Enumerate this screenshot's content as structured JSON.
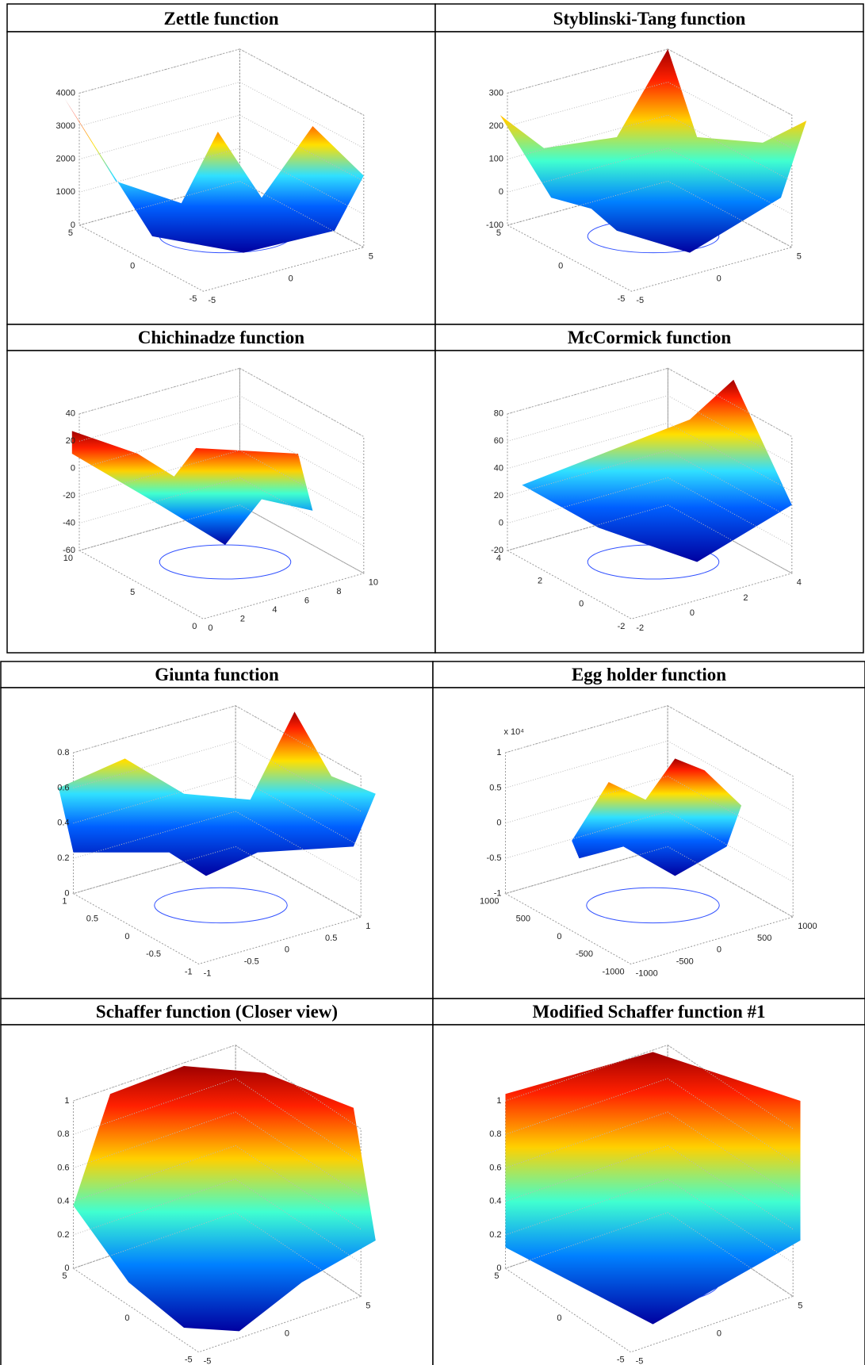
{
  "panels": [
    {
      "title": "Zettle function",
      "zticks": [
        0,
        1000,
        2000,
        3000,
        4000
      ],
      "yticks": [
        5,
        0,
        -5
      ],
      "xticks": [
        -5,
        0,
        5
      ]
    },
    {
      "title": "Styblinski-Tang function",
      "zticks": [
        -100,
        0,
        100,
        200,
        300
      ],
      "yticks": [
        5,
        0,
        -5
      ],
      "xticks": [
        -5,
        0,
        5
      ]
    },
    {
      "title": "Chichinadze function",
      "zticks": [
        -60,
        -40,
        -20,
        0,
        20,
        40
      ],
      "yticks": [
        10,
        5,
        0
      ],
      "xticks": [
        0,
        2,
        4,
        6,
        8,
        10
      ]
    },
    {
      "title": "McCormick function",
      "zticks": [
        -20,
        0,
        20,
        40,
        60,
        80
      ],
      "yticks": [
        4,
        2,
        0,
        -2
      ],
      "xticks": [
        -2,
        0,
        2,
        4
      ]
    },
    {
      "title": "Giunta function",
      "zticks": [
        0,
        0.2,
        0.4,
        0.6,
        0.8
      ],
      "yticks": [
        1,
        0.5,
        0,
        -0.5,
        -1
      ],
      "xticks": [
        -1,
        -0.5,
        0,
        0.5,
        1
      ]
    },
    {
      "title": "Egg holder function",
      "zmultiplier": "x 10⁴",
      "zticks": [
        -1,
        -0.5,
        0,
        0.5,
        1
      ],
      "yticks": [
        1000,
        500,
        0,
        -500,
        -1000
      ],
      "xticks": [
        -1000,
        -500,
        0,
        500,
        1000
      ]
    },
    {
      "title": "Schaffer function (Closer view)",
      "zticks": [
        0,
        0.2,
        0.4,
        0.6,
        0.8,
        1
      ],
      "yticks": [
        5,
        0,
        -5
      ],
      "xticks": [
        -5,
        0,
        5
      ]
    },
    {
      "title": "Modified Schaffer function #1",
      "zticks": [
        0,
        0.2,
        0.4,
        0.6,
        0.8,
        1
      ],
      "yticks": [
        5,
        0,
        -5
      ],
      "xticks": [
        -5,
        0,
        5
      ]
    }
  ]
}
